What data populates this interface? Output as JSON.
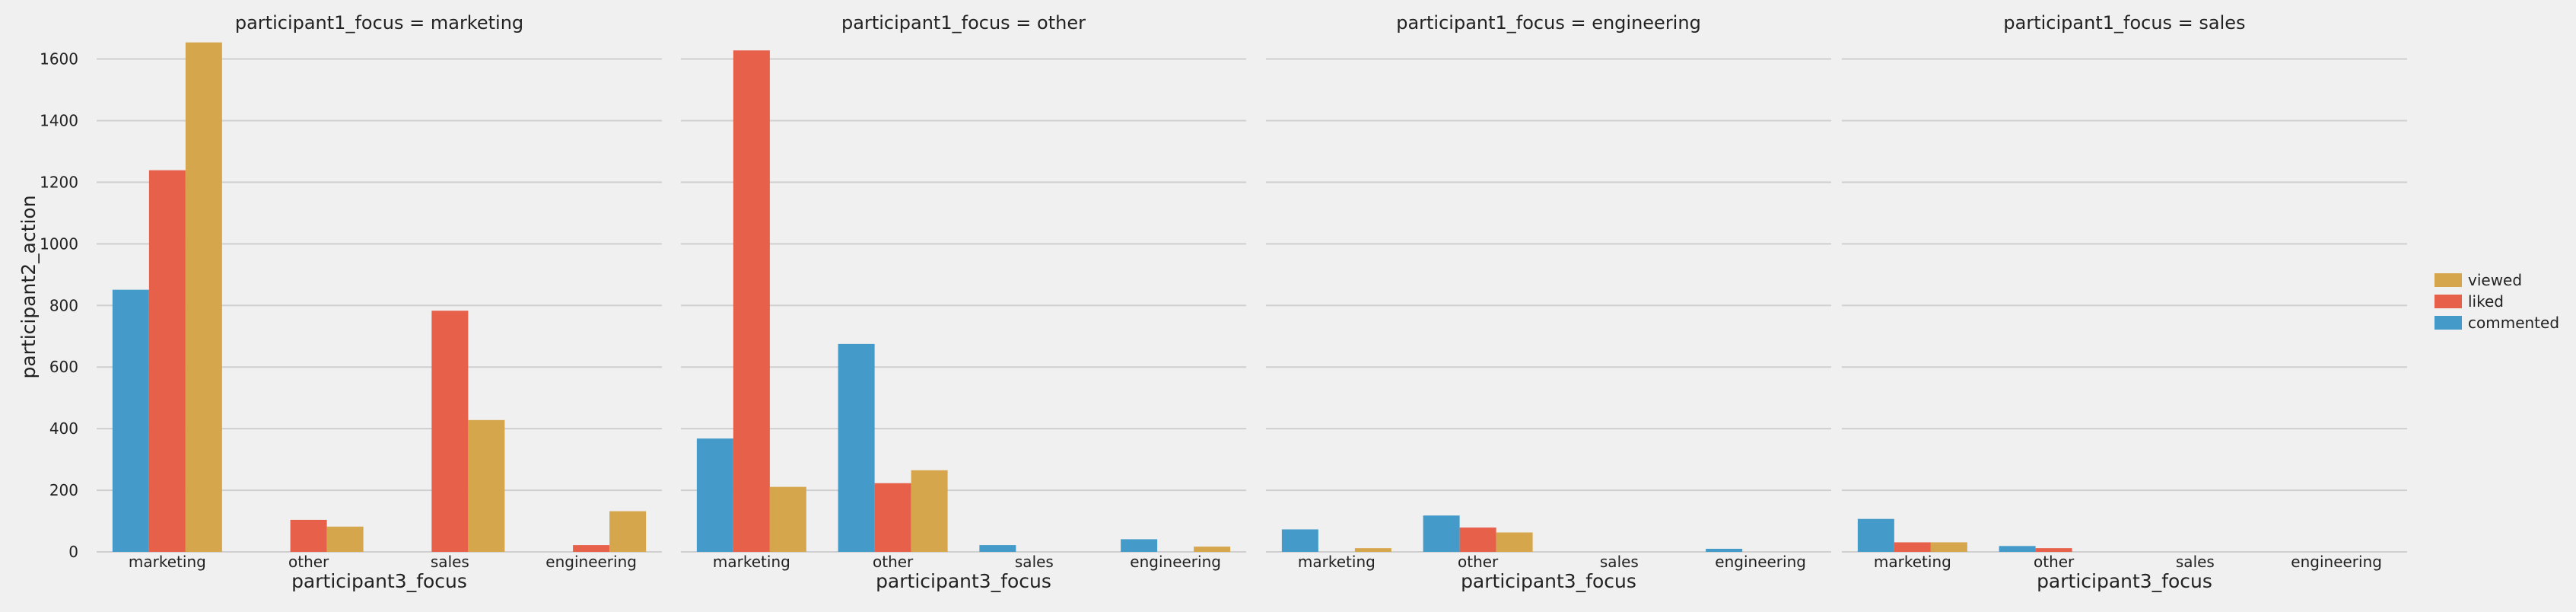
{
  "chart_data": {
    "type": "bar",
    "facet_titles": [
      "participant1_focus = marketing",
      "participant1_focus = other",
      "participant1_focus = engineering",
      "participant1_focus = sales"
    ],
    "categories": [
      "marketing",
      "other",
      "sales",
      "engineering"
    ],
    "xlabel": "participant3_focus",
    "ylabel": "participant2_action",
    "ylim": [
      0,
      1720
    ],
    "yticks": [
      0,
      200,
      400,
      600,
      800,
      1000,
      1200,
      1400,
      1600
    ],
    "grid": true,
    "legend_position": "right",
    "legend": [
      {
        "name": "viewed",
        "color": "#d5a64c"
      },
      {
        "name": "liked",
        "color": "#e6604a"
      },
      {
        "name": "commented",
        "color": "#449bc9"
      }
    ],
    "series_order": [
      "commented",
      "liked",
      "viewed"
    ],
    "colors": {
      "commented": "#449bc9",
      "liked": "#e6604a",
      "viewed": "#d5a64c"
    },
    "facets": [
      {
        "title": "participant1_focus = marketing",
        "series": [
          {
            "name": "commented",
            "values": [
              851,
              0,
              0,
              0
            ]
          },
          {
            "name": "liked",
            "values": [
              1239,
              104,
              783,
              22
            ]
          },
          {
            "name": "viewed",
            "values": [
              1654,
              82,
              428,
              132
            ]
          }
        ]
      },
      {
        "title": "participant1_focus = other",
        "series": [
          {
            "name": "commented",
            "values": [
              368,
              675,
              22,
              41
            ]
          },
          {
            "name": "liked",
            "values": [
              1628,
              223,
              0,
              0
            ]
          },
          {
            "name": "viewed",
            "values": [
              211,
              265,
              0,
              17
            ]
          }
        ]
      },
      {
        "title": "participant1_focus = engineering",
        "series": [
          {
            "name": "commented",
            "values": [
              73,
              118,
              0,
              10
            ]
          },
          {
            "name": "liked",
            "values": [
              0,
              79,
              0,
              0
            ]
          },
          {
            "name": "viewed",
            "values": [
              12,
              63,
              0,
              0
            ]
          }
        ]
      },
      {
        "title": "participant1_focus = sales",
        "series": [
          {
            "name": "commented",
            "values": [
              107,
              19,
              0,
              0
            ]
          },
          {
            "name": "liked",
            "values": [
              31,
              12,
              0,
              0
            ]
          },
          {
            "name": "viewed",
            "values": [
              31,
              0,
              0,
              0
            ]
          }
        ]
      }
    ]
  }
}
